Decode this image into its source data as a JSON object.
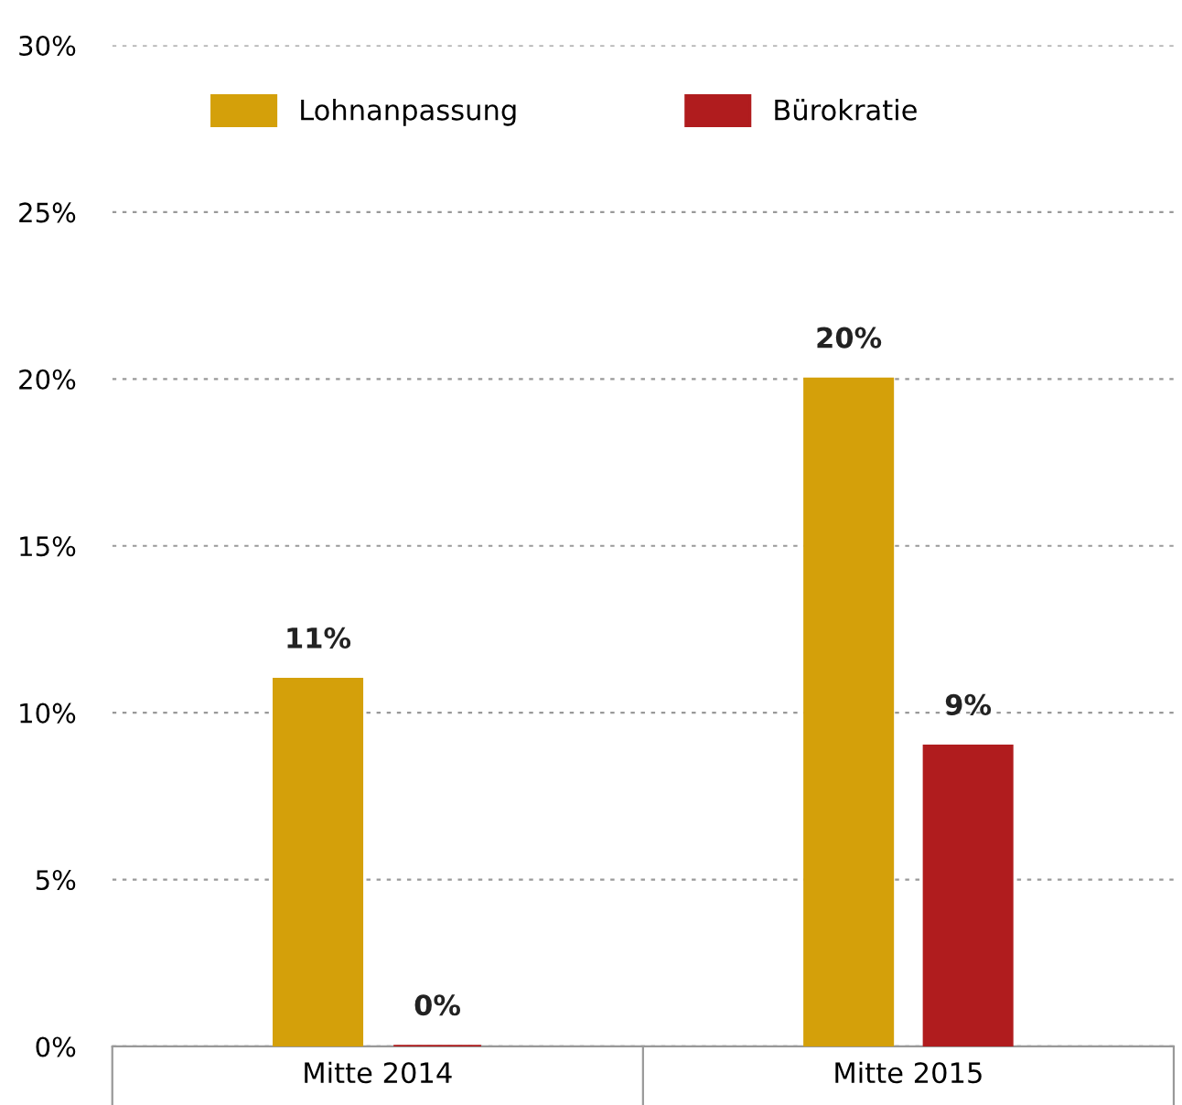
{
  "chart_data": {
    "type": "bar",
    "categories": [
      "Mitte 2014",
      "Mitte 2015"
    ],
    "series": [
      {
        "name": "Lohnanpassung",
        "color": "#d4a00a",
        "values": [
          11,
          20
        ],
        "value_labels": [
          "11%",
          "20%"
        ]
      },
      {
        "name": "Bürokratie",
        "color": "#b01c1e",
        "values": [
          0,
          9
        ],
        "value_labels": [
          "0%",
          "9%"
        ]
      }
    ],
    "ylim": [
      0,
      30
    ],
    "yticks": [
      {
        "value": 0,
        "label": "0%"
      },
      {
        "value": 5,
        "label": "5%"
      },
      {
        "value": 10,
        "label": "10%"
      },
      {
        "value": 15,
        "label": "15%"
      },
      {
        "value": 20,
        "label": "20%"
      },
      {
        "value": 25,
        "label": "25%"
      },
      {
        "value": 30,
        "label": "30%"
      }
    ],
    "grid": "y",
    "legend": "top left"
  }
}
